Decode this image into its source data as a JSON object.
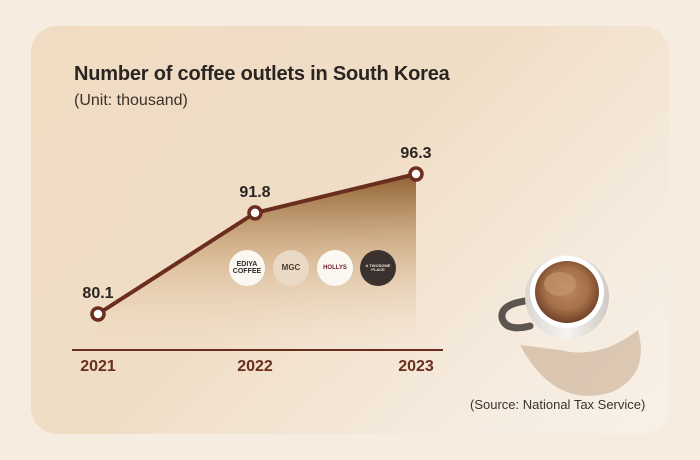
{
  "title": "Number of coffee outlets in South Korea",
  "subtitle": "(Unit: thousand)",
  "source": "(Source: National Tax Service)",
  "logos": {
    "ediya": "EDIYA COFFEE",
    "mega": "MGC",
    "hollys": "HOLLYS",
    "atwosome": "A TWOSOME PLACE"
  },
  "colors": {
    "line": "#6b2d1e",
    "area_top": "#8a5a2b",
    "text": "#2b2522",
    "axis": "#6b2d1e"
  },
  "chart_data": {
    "type": "line",
    "title": "Number of coffee outlets in South Korea",
    "subtitle": "(Unit: thousand)",
    "categories": [
      "2021",
      "2022",
      "2023"
    ],
    "values": [
      80.1,
      91.8,
      96.3
    ],
    "data_labels": [
      "80.1",
      "91.8",
      "96.3"
    ],
    "xlabel": "",
    "ylabel": "",
    "grid": false,
    "fill_area": true
  }
}
